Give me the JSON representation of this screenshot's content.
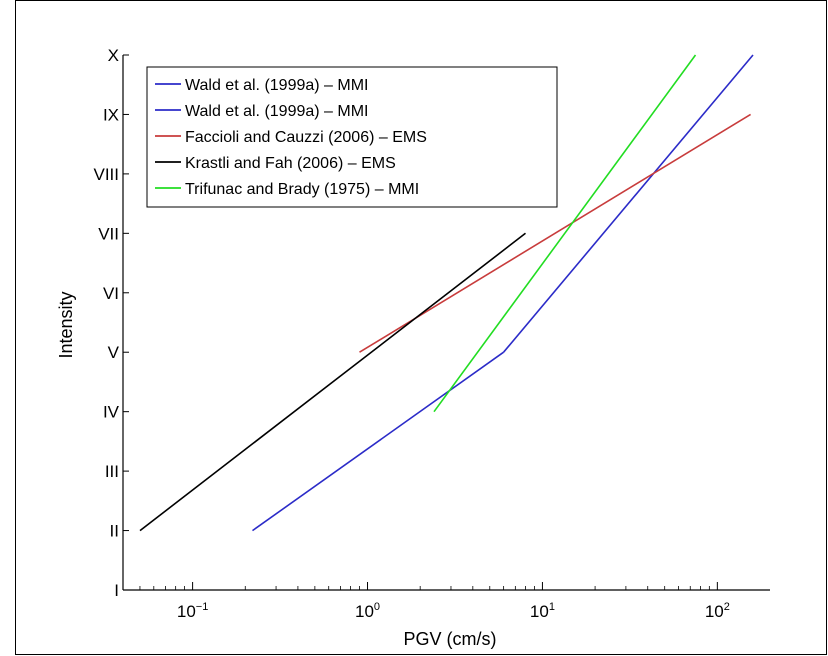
{
  "chart_data": {
    "type": "line",
    "xlabel": "PGV (cm/s)",
    "ylabel": "Intensity",
    "x_scale": "log",
    "xlim": [
      0.04,
      200
    ],
    "ylim": [
      1,
      10
    ],
    "x_ticks": [
      {
        "value": 0.1,
        "base": "10",
        "exp": "−1"
      },
      {
        "value": 1,
        "base": "10",
        "exp": "0"
      },
      {
        "value": 10,
        "base": "10",
        "exp": "1"
      },
      {
        "value": 100,
        "base": "10",
        "exp": "2"
      }
    ],
    "y_ticks": [
      {
        "value": 1,
        "label": "I"
      },
      {
        "value": 2,
        "label": "II"
      },
      {
        "value": 3,
        "label": "III"
      },
      {
        "value": 4,
        "label": "IV"
      },
      {
        "value": 5,
        "label": "V"
      },
      {
        "value": 6,
        "label": "VI"
      },
      {
        "value": 7,
        "label": "VII"
      },
      {
        "value": 8,
        "label": "VIII"
      },
      {
        "value": 9,
        "label": "IX"
      },
      {
        "value": 10,
        "label": "X"
      }
    ],
    "grid": false,
    "legend_position": "top-left",
    "series": [
      {
        "name": "Wald et al. (1999a) – MMI",
        "color": "#2b2bc8",
        "points": [
          [
            0.22,
            2.0
          ],
          [
            6.0,
            5.0
          ]
        ]
      },
      {
        "name": "Wald et al. (1999a) – MMI",
        "color": "#2b2bc8",
        "points": [
          [
            6.0,
            5.0
          ],
          [
            160,
            10.0
          ]
        ]
      },
      {
        "name": "Faccioli and Cauzzi (2006) – EMS",
        "color": "#c83c3c",
        "points": [
          [
            0.9,
            5.0
          ],
          [
            155,
            9.0
          ]
        ]
      },
      {
        "name": "Krastli and Fah (2006) – EMS",
        "color": "#000000",
        "points": [
          [
            0.05,
            2.0
          ],
          [
            8.0,
            7.0
          ]
        ]
      },
      {
        "name": "Trifunac and Brady (1975) – MMI",
        "color": "#22dd22",
        "points": [
          [
            2.4,
            4.0
          ],
          [
            75,
            10.0
          ]
        ]
      }
    ]
  }
}
